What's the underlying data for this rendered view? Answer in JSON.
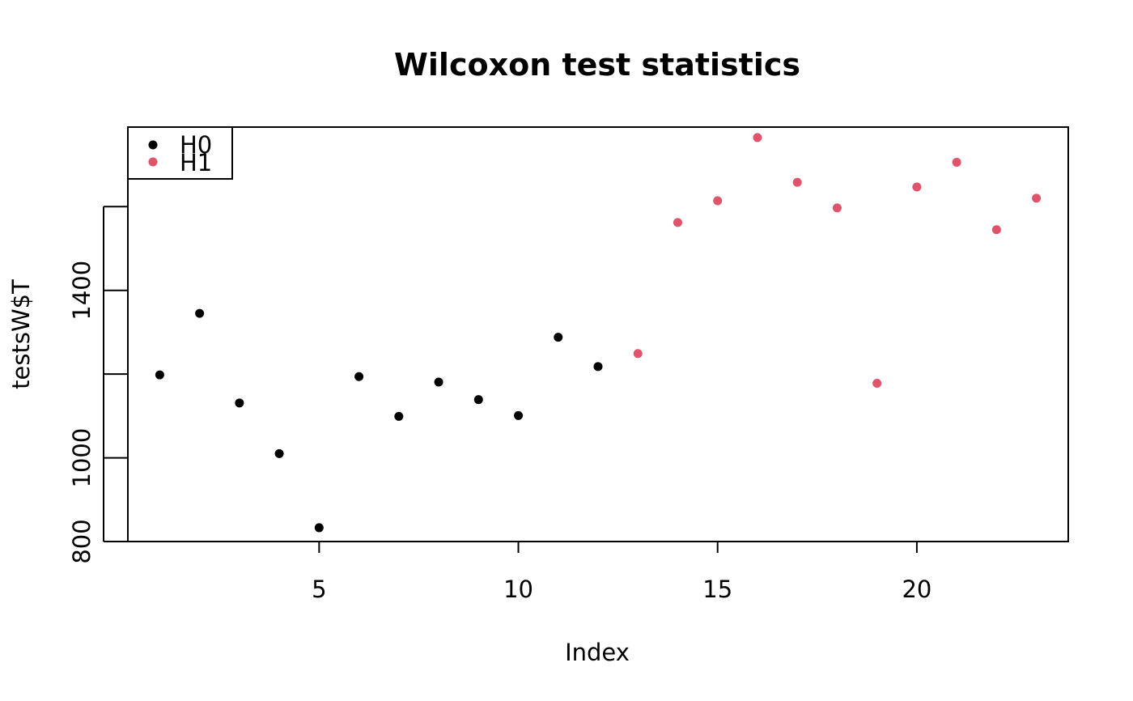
{
  "chart_data": {
    "type": "scatter",
    "title": "Wilcoxon test statistics",
    "xlabel": "Index",
    "ylabel": "testsW$T",
    "xlim": [
      0.2,
      23.8
    ],
    "ylim": [
      800,
      1790
    ],
    "x_ticks": [
      5,
      10,
      15,
      20
    ],
    "y_ticks": [
      800,
      1000,
      1200,
      1400,
      1600
    ],
    "y_tick_labels_shown": [
      "800",
      "1000",
      "1400"
    ],
    "grid": false,
    "legend_position": "top-left",
    "series": [
      {
        "name": "H0",
        "color": "#000000",
        "x": [
          1,
          2,
          3,
          4,
          5,
          6,
          7,
          8,
          9,
          10,
          11,
          12
        ],
        "y": [
          1198,
          1345,
          1131,
          1010,
          833,
          1194,
          1099,
          1181,
          1139,
          1101,
          1288,
          1218
        ]
      },
      {
        "name": "H1",
        "color": "#DF536B",
        "x": [
          13,
          14,
          15,
          16,
          17,
          18,
          19,
          20,
          21,
          22,
          23
        ],
        "y": [
          1249,
          1562,
          1614,
          1765,
          1658,
          1597,
          1178,
          1647,
          1706,
          1545,
          1620
        ]
      }
    ]
  }
}
